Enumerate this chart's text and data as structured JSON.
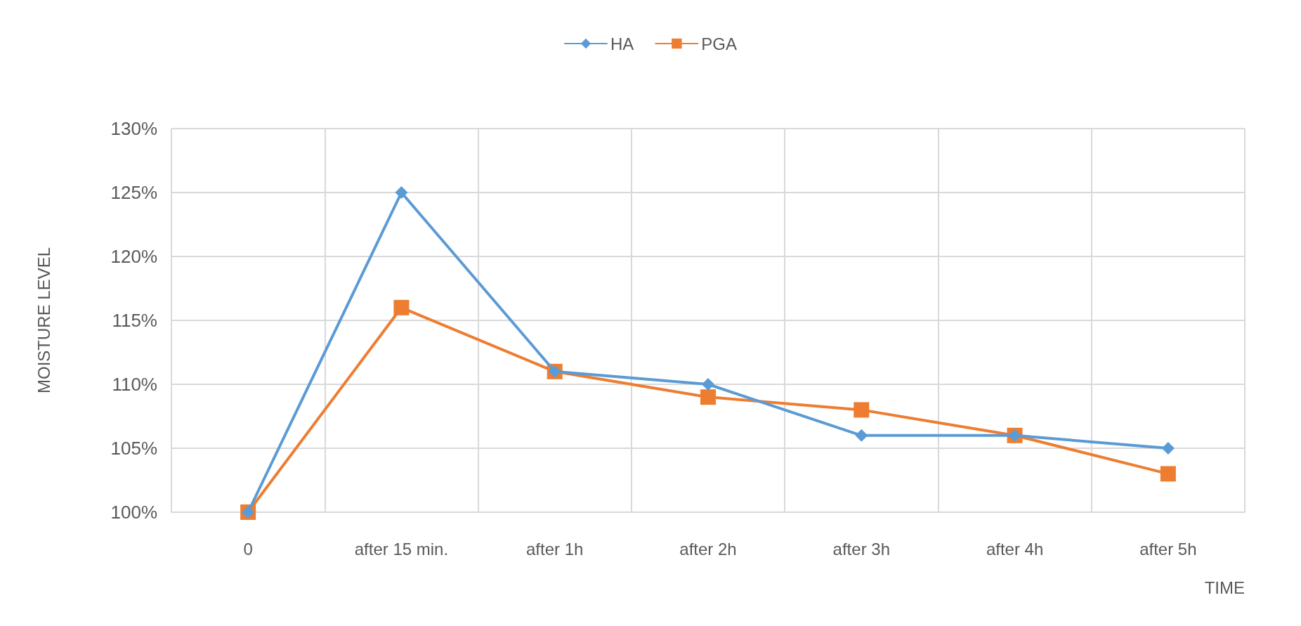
{
  "chart_data": {
    "type": "line",
    "xlabel": "TIME",
    "ylabel": "MOISTURE LEVEL",
    "categories": [
      "0",
      "after 15 min.",
      "after 1h",
      "after 2h",
      "after 3h",
      "after 4h",
      "after 5h"
    ],
    "series": [
      {
        "name": "HA",
        "color": "#5b9bd5",
        "marker": "diamond",
        "values": [
          100,
          125,
          111,
          110,
          106,
          106,
          105
        ]
      },
      {
        "name": "PGA",
        "color": "#ed7d31",
        "marker": "square",
        "values": [
          100,
          116,
          111,
          109,
          108,
          106,
          103
        ]
      }
    ],
    "ylim": [
      100,
      130
    ],
    "yticks": [
      {
        "value": 100,
        "label": "100%"
      },
      {
        "value": 105,
        "label": "105%"
      },
      {
        "value": 110,
        "label": "110%"
      },
      {
        "value": 115,
        "label": "115%"
      },
      {
        "value": 120,
        "label": "120%"
      },
      {
        "value": 125,
        "label": "125%"
      },
      {
        "value": 130,
        "label": "130%"
      }
    ],
    "grid": true,
    "legend": "top",
    "line_style": "solid"
  }
}
